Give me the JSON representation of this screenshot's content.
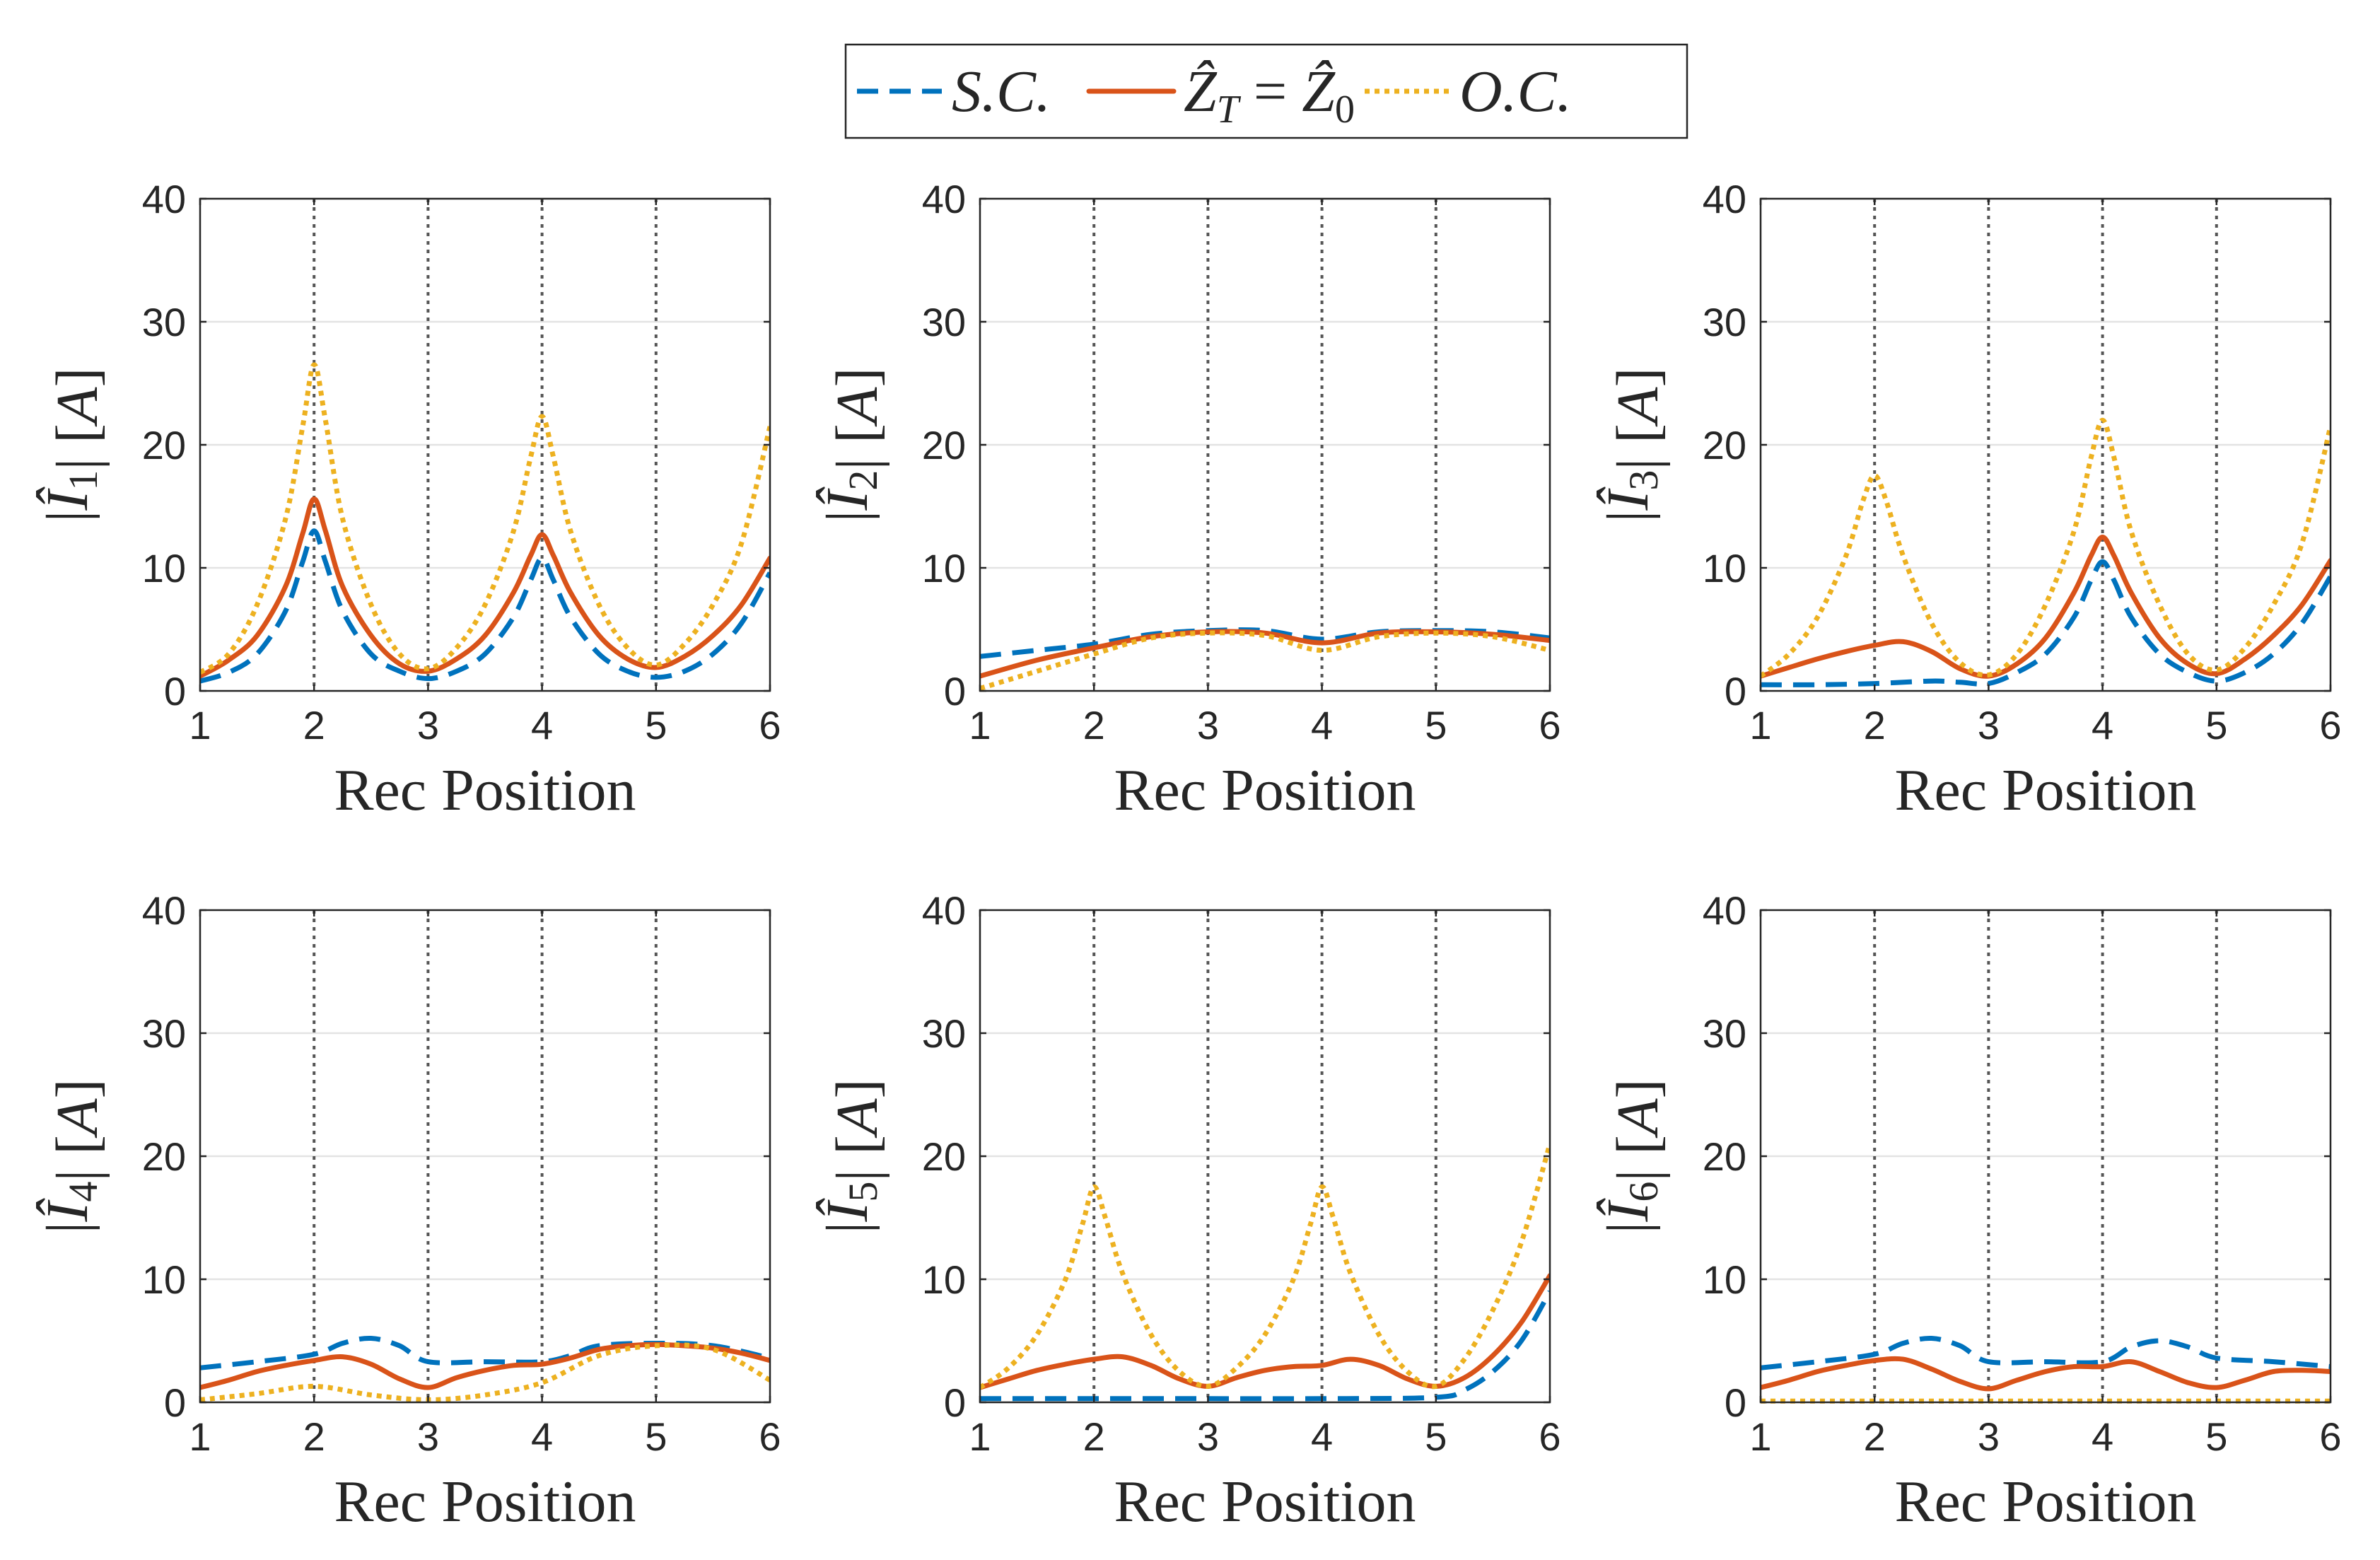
{
  "figure": {
    "legend": [
      {
        "key": "sc",
        "label": "S.C.",
        "color": "#0072BD",
        "style": "dashed"
      },
      {
        "key": "zt",
        "label": "Ẑ_T = Ẑ_0",
        "color": "#D95319",
        "style": "solid"
      },
      {
        "key": "oc",
        "label": "O.C.",
        "color": "#EDB120",
        "style": "dotted"
      }
    ],
    "vertical_markers": [
      2,
      3,
      4,
      5
    ]
  },
  "chart_data": [
    {
      "type": "line",
      "xlabel": "Rec Position",
      "ylabel": "|Î_1| [A]",
      "ylabel_sub": "1",
      "xlim": [
        1,
        6
      ],
      "ylim": [
        0,
        40
      ],
      "xticks": [
        1,
        2,
        3,
        4,
        5,
        6
      ],
      "yticks": [
        0,
        10,
        20,
        30,
        40
      ],
      "grid": "horizontal",
      "series": [
        {
          "name": "S.C.",
          "x": [
            1,
            1.25,
            1.5,
            1.75,
            1.9,
            2,
            2.1,
            2.25,
            2.5,
            2.75,
            3,
            3.25,
            3.5,
            3.75,
            3.9,
            4,
            4.1,
            4.25,
            4.5,
            4.75,
            5,
            5.25,
            5.5,
            5.75,
            6
          ],
          "y": [
            0.8,
            1.5,
            3.0,
            6.5,
            10.5,
            13.0,
            10.5,
            6.5,
            3.0,
            1.6,
            1.0,
            1.6,
            3.0,
            6.0,
            9.0,
            10.8,
            9.0,
            6.0,
            3.0,
            1.6,
            1.1,
            1.6,
            3.0,
            5.5,
            9.6
          ]
        },
        {
          "name": "Ẑ_T = Ẑ_0",
          "x": [
            1,
            1.25,
            1.5,
            1.75,
            1.9,
            2,
            2.1,
            2.25,
            2.5,
            2.75,
            3,
            3.25,
            3.5,
            3.75,
            3.9,
            4,
            4.1,
            4.25,
            4.5,
            4.75,
            5,
            5.25,
            5.5,
            5.75,
            6
          ],
          "y": [
            1.2,
            2.5,
            4.5,
            8.5,
            12.8,
            15.6,
            13.0,
            8.5,
            4.5,
            2.2,
            1.6,
            2.6,
            4.5,
            8.0,
            11.0,
            12.7,
            11.0,
            8.0,
            4.5,
            2.6,
            1.9,
            2.8,
            4.5,
            7.0,
            10.8
          ]
        },
        {
          "name": "O.C.",
          "x": [
            1,
            1.25,
            1.5,
            1.75,
            1.9,
            2,
            2.1,
            2.25,
            2.5,
            2.75,
            3,
            3.25,
            3.5,
            3.75,
            3.9,
            4,
            4.1,
            4.25,
            4.5,
            4.75,
            5,
            5.25,
            5.5,
            5.75,
            6
          ],
          "y": [
            1.5,
            3.0,
            7.0,
            14.0,
            21.5,
            26.5,
            22.0,
            14.0,
            7.0,
            3.0,
            1.8,
            3.5,
            7.0,
            13.0,
            19.0,
            22.3,
            19.0,
            13.0,
            7.0,
            3.5,
            2.1,
            3.8,
            7.0,
            12.0,
            21.5
          ]
        }
      ]
    },
    {
      "type": "line",
      "xlabel": "Rec Position",
      "ylabel": "|Î_2| [A]",
      "ylabel_sub": "2",
      "xlim": [
        1,
        6
      ],
      "ylim": [
        0,
        40
      ],
      "xticks": [
        1,
        2,
        3,
        4,
        5,
        6
      ],
      "yticks": [
        0,
        10,
        20,
        30,
        40
      ],
      "grid": "horizontal",
      "series": [
        {
          "name": "S.C.",
          "x": [
            1,
            1.5,
            2,
            2.5,
            3,
            3.5,
            4,
            4.5,
            5,
            5.5,
            6
          ],
          "y": [
            2.8,
            3.3,
            3.8,
            4.6,
            4.9,
            4.9,
            4.2,
            4.8,
            4.9,
            4.8,
            4.3
          ]
        },
        {
          "name": "Ẑ_T = Ẑ_0",
          "x": [
            1,
            1.5,
            2,
            2.5,
            3,
            3.5,
            4,
            4.5,
            5,
            5.5,
            6
          ],
          "y": [
            1.2,
            2.5,
            3.5,
            4.4,
            4.8,
            4.7,
            3.9,
            4.7,
            4.8,
            4.6,
            4.1
          ]
        },
        {
          "name": "O.C.",
          "x": [
            1,
            1.5,
            2,
            2.5,
            3,
            3.5,
            4,
            4.5,
            5,
            5.5,
            6
          ],
          "y": [
            0.2,
            1.6,
            3.0,
            4.3,
            4.7,
            4.5,
            3.3,
            4.4,
            4.7,
            4.4,
            3.3
          ]
        }
      ]
    },
    {
      "type": "line",
      "xlabel": "Rec Position",
      "ylabel": "|Î_3| [A]",
      "ylabel_sub": "3",
      "xlim": [
        1,
        6
      ],
      "ylim": [
        0,
        40
      ],
      "xticks": [
        1,
        2,
        3,
        4,
        5,
        6
      ],
      "yticks": [
        0,
        10,
        20,
        30,
        40
      ],
      "grid": "horizontal",
      "series": [
        {
          "name": "S.C.",
          "x": [
            1,
            1.5,
            2,
            2.5,
            2.75,
            3,
            3.25,
            3.5,
            3.75,
            3.9,
            4,
            4.1,
            4.25,
            4.5,
            4.75,
            5,
            5.25,
            5.5,
            5.75,
            6
          ],
          "y": [
            0.5,
            0.5,
            0.6,
            0.8,
            0.7,
            0.6,
            1.5,
            3.0,
            6.0,
            9.0,
            10.5,
            9.0,
            6.0,
            3.0,
            1.5,
            0.8,
            1.5,
            3.0,
            5.5,
            9.3
          ]
        },
        {
          "name": "Ẑ_T = Ẑ_0",
          "x": [
            1,
            1.25,
            1.5,
            1.75,
            2,
            2.25,
            2.5,
            2.75,
            3,
            3.25,
            3.5,
            3.75,
            3.9,
            4,
            4.1,
            4.25,
            4.5,
            4.75,
            5,
            5.25,
            5.5,
            5.75,
            6
          ],
          "y": [
            1.2,
            1.9,
            2.6,
            3.2,
            3.7,
            4.0,
            3.2,
            1.8,
            1.2,
            2.2,
            4.3,
            8.0,
            11.0,
            12.5,
            11.0,
            8.0,
            4.3,
            2.2,
            1.4,
            2.6,
            4.5,
            7.0,
            10.6
          ]
        },
        {
          "name": "O.C.",
          "x": [
            1,
            1.25,
            1.5,
            1.75,
            1.9,
            2,
            2.1,
            2.25,
            2.5,
            2.75,
            3,
            3.25,
            3.5,
            3.75,
            3.9,
            4,
            4.1,
            4.25,
            4.5,
            4.75,
            5,
            5.25,
            5.5,
            5.75,
            6
          ],
          "y": [
            1.2,
            3.0,
            6.0,
            11.0,
            15.5,
            17.5,
            15.5,
            11.0,
            5.5,
            2.3,
            1.3,
            3.0,
            7.0,
            13.0,
            19.0,
            22.0,
            19.0,
            13.0,
            7.0,
            3.0,
            1.7,
            3.5,
            7.0,
            12.0,
            21.5
          ]
        }
      ]
    },
    {
      "type": "line",
      "xlabel": "Rec Position",
      "ylabel": "|Î_4| [A]",
      "ylabel_sub": "4",
      "xlim": [
        1,
        6
      ],
      "ylim": [
        0,
        40
      ],
      "xticks": [
        1,
        2,
        3,
        4,
        5,
        6
      ],
      "yticks": [
        0,
        10,
        20,
        30,
        40
      ],
      "grid": "horizontal",
      "series": [
        {
          "name": "S.C.",
          "x": [
            1,
            1.5,
            2,
            2.25,
            2.5,
            2.75,
            3,
            3.5,
            4,
            4.25,
            4.5,
            5,
            5.5,
            6
          ],
          "y": [
            2.8,
            3.3,
            3.9,
            4.8,
            5.2,
            4.6,
            3.3,
            3.3,
            3.3,
            3.8,
            4.6,
            4.8,
            4.6,
            3.6
          ]
        },
        {
          "name": "Ẑ_T = Ẑ_0",
          "x": [
            1,
            1.25,
            1.5,
            1.75,
            2,
            2.25,
            2.5,
            2.75,
            3,
            3.25,
            3.5,
            3.75,
            4,
            4.25,
            4.5,
            4.75,
            5,
            5.25,
            5.5,
            5.75,
            6
          ],
          "y": [
            1.2,
            1.8,
            2.5,
            3.0,
            3.4,
            3.7,
            3.1,
            1.9,
            1.2,
            2.0,
            2.6,
            3.0,
            3.1,
            3.6,
            4.3,
            4.6,
            4.7,
            4.6,
            4.4,
            4.0,
            3.4
          ]
        },
        {
          "name": "O.C.",
          "x": [
            1,
            1.5,
            2,
            2.5,
            3,
            3.5,
            4,
            4.5,
            5,
            5.5,
            6
          ],
          "y": [
            0.2,
            0.7,
            1.3,
            0.6,
            0.2,
            0.6,
            1.6,
            3.8,
            4.6,
            4.3,
            1.8
          ]
        }
      ]
    },
    {
      "type": "line",
      "xlabel": "Rec Position",
      "ylabel": "|Î_5| [A]",
      "ylabel_sub": "5",
      "xlim": [
        1,
        6
      ],
      "ylim": [
        0,
        40
      ],
      "xticks": [
        1,
        2,
        3,
        4,
        5,
        6
      ],
      "yticks": [
        0,
        10,
        20,
        30,
        40
      ],
      "grid": "horizontal",
      "series": [
        {
          "name": "S.C.",
          "x": [
            1,
            2,
            3,
            4,
            5,
            5.25,
            5.5,
            5.75,
            6
          ],
          "y": [
            0.3,
            0.3,
            0.3,
            0.3,
            0.4,
            1.0,
            2.5,
            5.0,
            9.0
          ]
        },
        {
          "name": "Ẑ_T = Ẑ_0",
          "x": [
            1,
            1.25,
            1.5,
            1.75,
            2,
            2.25,
            2.5,
            2.75,
            3,
            3.25,
            3.5,
            3.75,
            4,
            4.25,
            4.5,
            4.75,
            5,
            5.25,
            5.5,
            5.75,
            6
          ],
          "y": [
            1.2,
            1.9,
            2.6,
            3.1,
            3.5,
            3.7,
            3.0,
            1.9,
            1.3,
            2.0,
            2.6,
            2.9,
            3.0,
            3.5,
            3.0,
            1.9,
            1.3,
            2.0,
            3.8,
            6.5,
            10.3
          ]
        },
        {
          "name": "O.C.",
          "x": [
            1,
            1.25,
            1.5,
            1.75,
            1.9,
            2,
            2.1,
            2.25,
            2.5,
            2.75,
            3,
            3.25,
            3.5,
            3.75,
            3.9,
            4,
            4.1,
            4.25,
            4.5,
            4.75,
            5,
            5.25,
            5.5,
            5.75,
            6
          ],
          "y": [
            1.2,
            2.8,
            5.5,
            10.0,
            14.5,
            17.5,
            15.0,
            10.5,
            5.5,
            2.5,
            1.3,
            2.8,
            5.5,
            10.0,
            14.5,
            17.5,
            15.0,
            10.5,
            5.5,
            2.5,
            1.3,
            3.5,
            7.5,
            13.0,
            21.0
          ]
        }
      ]
    },
    {
      "type": "line",
      "xlabel": "Rec Position",
      "ylabel": "|Î_6| [A]",
      "ylabel_sub": "6",
      "xlim": [
        1,
        6
      ],
      "ylim": [
        0,
        40
      ],
      "xticks": [
        1,
        2,
        3,
        4,
        5,
        6
      ],
      "yticks": [
        0,
        10,
        20,
        30,
        40
      ],
      "grid": "horizontal",
      "series": [
        {
          "name": "S.C.",
          "x": [
            1,
            1.5,
            2,
            2.25,
            2.5,
            2.75,
            3,
            3.5,
            4,
            4.25,
            4.5,
            4.75,
            5,
            5.5,
            6
          ],
          "y": [
            2.8,
            3.3,
            3.9,
            4.8,
            5.2,
            4.6,
            3.3,
            3.3,
            3.3,
            4.5,
            5.0,
            4.5,
            3.6,
            3.3,
            2.9
          ]
        },
        {
          "name": "Ẑ_T = Ẑ_0",
          "x": [
            1,
            1.25,
            1.5,
            1.75,
            2,
            2.25,
            2.5,
            2.75,
            3,
            3.25,
            3.5,
            3.75,
            4,
            4.25,
            4.5,
            4.75,
            5,
            5.25,
            5.5,
            5.75,
            6
          ],
          "y": [
            1.2,
            1.8,
            2.5,
            3.0,
            3.4,
            3.5,
            2.7,
            1.7,
            1.1,
            1.8,
            2.5,
            2.9,
            2.9,
            3.3,
            2.5,
            1.6,
            1.2,
            1.8,
            2.5,
            2.6,
            2.5
          ]
        },
        {
          "name": "O.C.",
          "x": [
            1,
            2,
            3,
            4,
            5,
            6
          ],
          "y": [
            0.1,
            0.1,
            0.1,
            0.1,
            0.1,
            0.1
          ]
        }
      ]
    }
  ]
}
